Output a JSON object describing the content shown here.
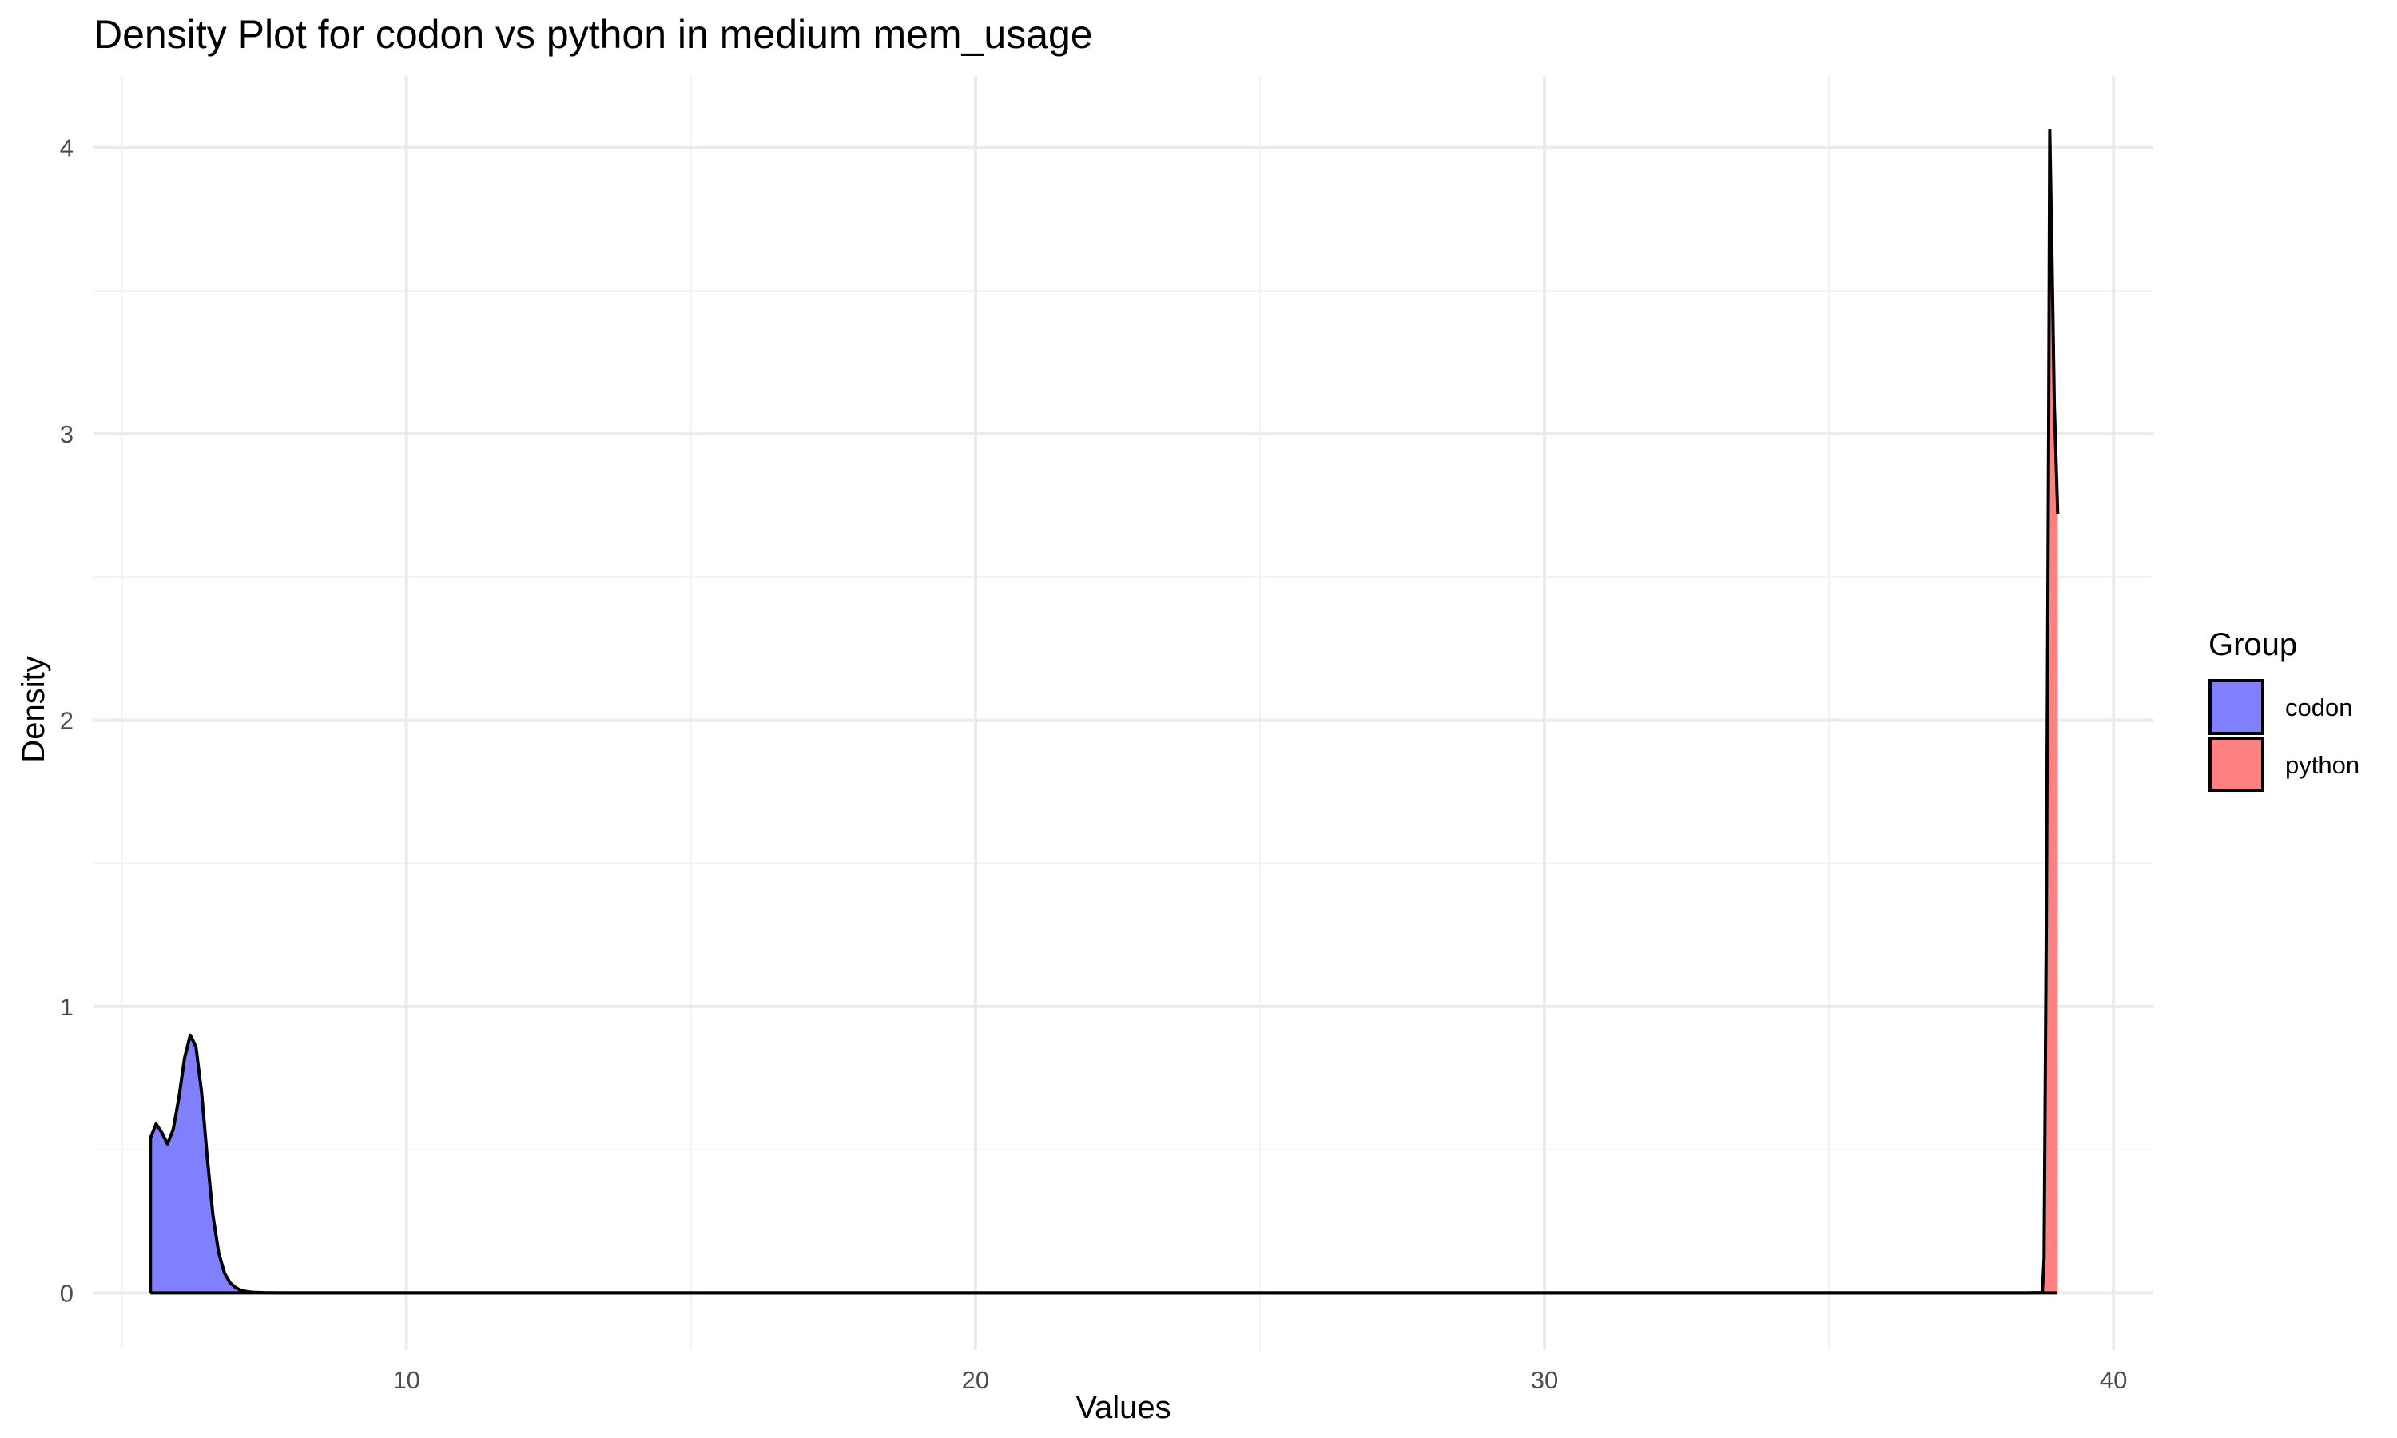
{
  "chart_data": {
    "type": "area",
    "title": "Density Plot for codon vs python in medium mem_usage",
    "xlabel": "Values",
    "ylabel": "Density",
    "xlim": [
      4.5,
      40.7
    ],
    "ylim": [
      -0.2,
      4.25
    ],
    "x_ticks": [
      10,
      20,
      30,
      40
    ],
    "y_ticks": [
      0,
      1,
      2,
      3,
      4
    ],
    "grid": true,
    "legend": {
      "title": "Group",
      "position": "right"
    },
    "series": [
      {
        "name": "codon",
        "color": "#8080ff",
        "x": [
          5.5,
          5.6,
          5.7,
          5.8,
          5.9,
          6.0,
          6.1,
          6.2,
          6.3,
          6.4,
          6.5,
          6.6,
          6.7,
          6.8,
          6.9,
          7.0,
          7.1,
          7.2,
          7.3,
          7.5,
          7.8,
          8.0,
          10,
          15,
          20,
          25,
          30,
          35,
          39.0
        ],
        "y": [
          0.54,
          0.59,
          0.56,
          0.52,
          0.57,
          0.68,
          0.82,
          0.9,
          0.86,
          0.7,
          0.47,
          0.27,
          0.14,
          0.07,
          0.035,
          0.018,
          0.008,
          0.004,
          0.002,
          0.0005,
          0,
          0,
          0,
          0,
          0,
          0,
          0,
          0,
          0
        ]
      },
      {
        "name": "python",
        "color": "#ff8080",
        "x": [
          5.5,
          10,
          20,
          30,
          38.5,
          38.75,
          38.78,
          38.82,
          38.86,
          38.88,
          38.92,
          38.96,
          39.02
        ],
        "y": [
          0,
          0,
          0,
          0,
          0,
          0.001,
          0.12,
          1.3,
          3.0,
          4.06,
          3.6,
          3.1,
          2.72
        ]
      }
    ]
  }
}
